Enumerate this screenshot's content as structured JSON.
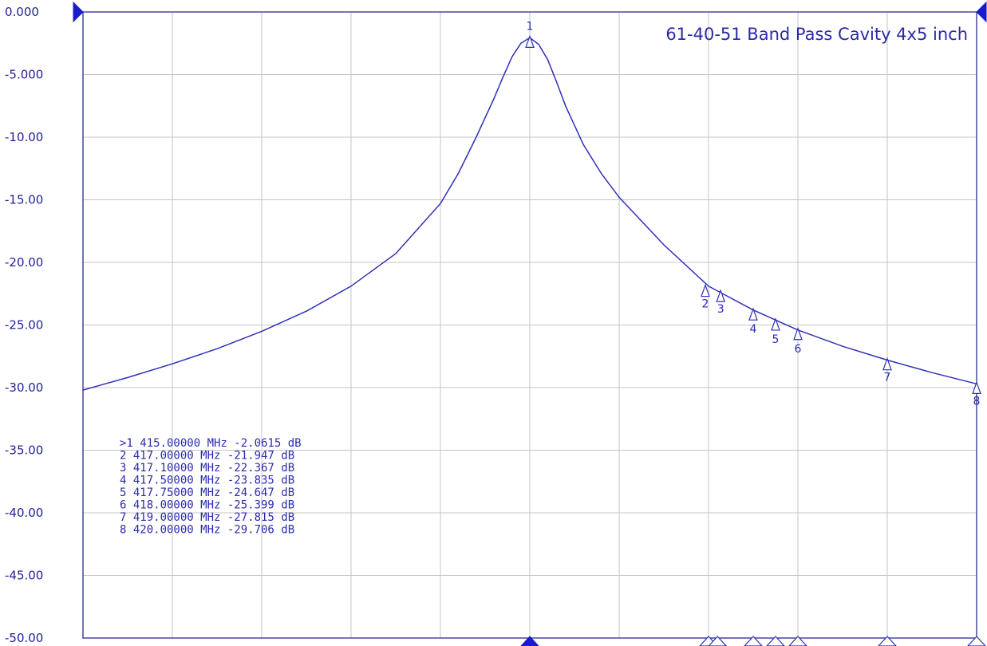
{
  "chart_data": {
    "type": "line",
    "title": "61-40-51 Band Pass Cavity 4x5 inch",
    "xlabel": "",
    "ylabel": "",
    "x_units": "MHz",
    "y_units": "dB",
    "xlim": [
      410,
      420
    ],
    "ylim": [
      -50,
      0
    ],
    "y_ticks": [
      "0.000",
      "-5.000",
      "-10.00",
      "-15.00",
      "-20.00",
      "-25.00",
      "-30.00",
      "-35.00",
      "-40.00",
      "-45.00",
      "-50.00"
    ],
    "grid": true,
    "series": [
      {
        "x": [
          410,
          410.5,
          411,
          411.5,
          412,
          412.5,
          413,
          413.5,
          414,
          414.2,
          414.4,
          414.6,
          414.7,
          414.8,
          414.9,
          415,
          415.1,
          415.2,
          415.3,
          415.4,
          415.6,
          415.8,
          416,
          416.5,
          417,
          417.5,
          418,
          418.5,
          419,
          419.5,
          420
        ],
        "y": [
          -30.2,
          -29.2,
          -28.1,
          -26.9,
          -25.5,
          -23.9,
          -21.9,
          -19.3,
          -15.3,
          -12.9,
          -10.0,
          -6.9,
          -5.2,
          -3.6,
          -2.5,
          -2.06,
          -2.6,
          -3.8,
          -5.6,
          -7.5,
          -10.6,
          -12.9,
          -14.8,
          -18.6,
          -21.9,
          -23.8,
          -25.4,
          -26.7,
          -27.8,
          -28.8,
          -29.7
        ]
      }
    ],
    "markers": [
      {
        "id": "1",
        "x": 415.0,
        "y": -2.0615
      },
      {
        "id": "2",
        "x": 417.0,
        "y": -21.947
      },
      {
        "id": "3",
        "x": 417.1,
        "y": -22.367
      },
      {
        "id": "4",
        "x": 417.5,
        "y": -23.835
      },
      {
        "id": "5",
        "x": 417.75,
        "y": -24.647
      },
      {
        "id": "6",
        "x": 418.0,
        "y": -25.399
      },
      {
        "id": "7",
        "x": 419.0,
        "y": -27.815
      },
      {
        "id": "8",
        "x": 420.0,
        "y": -29.706
      }
    ],
    "marker_table": [
      ">1  415.00000 MHz -2.0615 dB",
      "2  417.00000 MHz -21.947 dB",
      "3  417.10000 MHz -22.367 dB",
      "4  417.50000 MHz -23.835 dB",
      "5  417.75000 MHz -24.647 dB",
      "6  418.00000 MHz -25.399 dB",
      "7  419.00000 MHz -27.815 dB",
      "8  420.00000 MHz -29.706 dB"
    ],
    "colors": {
      "trace": "#2f2fb8",
      "text": "#2a2ab0",
      "grid": "#c4c4c4"
    }
  }
}
